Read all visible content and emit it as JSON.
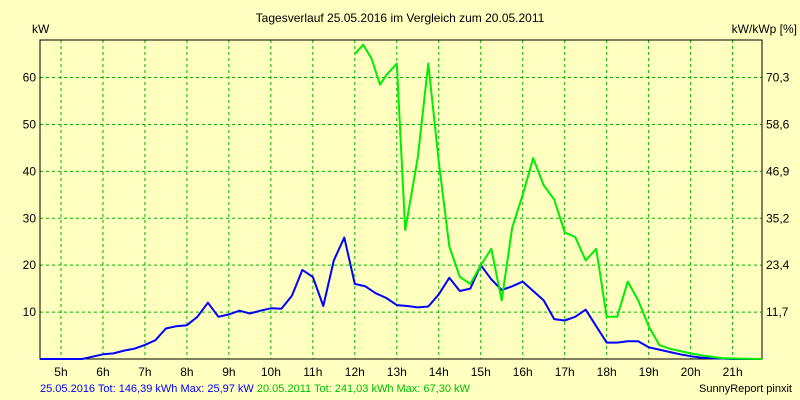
{
  "chart_data": {
    "type": "line",
    "title": "Tagesverlauf 25.05.2016 im Vergleich zum 20.05.2011",
    "ylabel_left": "kW",
    "ylabel_right": "kW/kWp [%]",
    "xlim": [
      4.5,
      21.7
    ],
    "ylim": [
      0,
      68
    ],
    "grid": true,
    "x_ticks": [
      5,
      6,
      7,
      8,
      9,
      10,
      11,
      12,
      13,
      14,
      15,
      16,
      17,
      18,
      19,
      20,
      21
    ],
    "x_tick_labels": [
      "5h",
      "6h",
      "7h",
      "8h",
      "9h",
      "10h",
      "11h",
      "12h",
      "13h",
      "14h",
      "15h",
      "16h",
      "17h",
      "18h",
      "19h",
      "20h",
      "21h"
    ],
    "y_ticks_left": [
      10,
      20,
      30,
      40,
      50,
      60
    ],
    "y_tick_labels_left": [
      "10",
      "20",
      "30",
      "40",
      "50",
      "60"
    ],
    "y_ticks_right_at": [
      10,
      20,
      30,
      40,
      50,
      60
    ],
    "y_tick_labels_right": [
      "11,7",
      "23,4",
      "35,2",
      "46,9",
      "58,6",
      "70,3"
    ],
    "series": [
      {
        "color": "#0000ff",
        "x": [
          4.5,
          5.5,
          5.75,
          6.0,
          6.25,
          6.5,
          6.75,
          7.0,
          7.25,
          7.5,
          7.75,
          8.0,
          8.25,
          8.5,
          8.75,
          9.0,
          9.25,
          9.5,
          9.75,
          10.0,
          10.25,
          10.5,
          10.75,
          11.0,
          11.25,
          11.5,
          11.75,
          12.0,
          12.25,
          12.5,
          12.75,
          13.0,
          13.25,
          13.5,
          13.75,
          14.0,
          14.25,
          14.5,
          14.75,
          15.0,
          15.25,
          15.5,
          15.75,
          16.0,
          16.25,
          16.5,
          16.75,
          17.0,
          17.25,
          17.5,
          17.75,
          18.0,
          18.25,
          18.5,
          18.75,
          19.0,
          19.25,
          19.5,
          19.75,
          20.0,
          20.25,
          20.5,
          20.75,
          21.0,
          21.7
        ],
        "y": [
          0,
          0,
          0.5,
          1,
          1.2,
          1.8,
          2.2,
          3,
          4,
          6.5,
          7,
          7.2,
          9,
          12,
          9,
          9.5,
          10.3,
          9.7,
          10.3,
          10.8,
          10.7,
          13.5,
          19,
          17.5,
          11.3,
          21,
          25.9,
          16,
          15.5,
          14,
          13,
          11.5,
          11.3,
          11,
          11.2,
          13.8,
          17.3,
          14.5,
          15,
          20,
          17,
          14.7,
          15.5,
          16.5,
          14.5,
          12.5,
          8.5,
          8.2,
          9,
          10.5,
          7,
          3.5,
          3.5,
          3.8,
          3.8,
          2.5,
          2,
          1.5,
          1,
          0.6,
          0.3,
          0.2,
          0.1,
          0,
          0
        ]
      },
      {
        "color": "#00ee00",
        "x": [
          12.0,
          12.2,
          12.4,
          12.6,
          12.75,
          13.0,
          13.2,
          13.5,
          13.75,
          14.0,
          14.25,
          14.5,
          14.75,
          15.0,
          15.25,
          15.5,
          15.75,
          16.0,
          16.25,
          16.5,
          16.75,
          17.0,
          17.25,
          17.5,
          17.75,
          18.0,
          18.25,
          18.5,
          18.75,
          19.0,
          19.25,
          19.5,
          19.75,
          20.0,
          20.25,
          20.5,
          20.75,
          21.0,
          21.7
        ],
        "y": [
          65,
          67,
          64,
          58.5,
          60.5,
          63,
          27.5,
          43,
          63,
          42,
          24,
          17.5,
          16,
          20,
          23.5,
          12.5,
          28,
          35,
          42.8,
          37,
          34,
          27,
          26,
          21,
          23.5,
          9,
          9,
          16.5,
          12.5,
          7,
          3,
          2.2,
          1.7,
          1.2,
          0.8,
          0.5,
          0.2,
          0.1,
          0
        ]
      }
    ]
  },
  "footer": {
    "legend_2016": "25.05.2016 Tot: 146,39 kWh Max: 25,97 kW",
    "legend_2011": "20.05.2011 Tot: 241,03 kWh Max: 67,30 kW",
    "brand": "SunnyReport pinxit",
    "color_2016": "#0000ff",
    "color_2011": "#00c000"
  }
}
